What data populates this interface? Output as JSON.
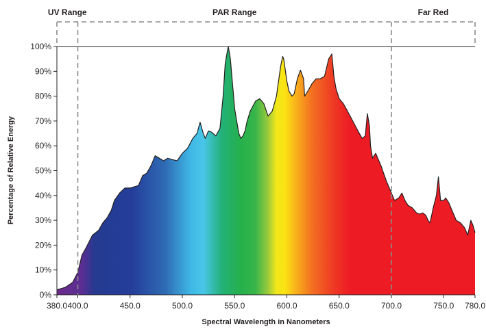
{
  "chart_data": {
    "type": "area",
    "title": "",
    "xlabel": "Spectral Wavelength in Nanometers",
    "ylabel": "Percentage of Relative Energy",
    "xlim": [
      380,
      780
    ],
    "ylim": [
      0,
      100
    ],
    "x_ticks": [
      "380.0",
      "400.0",
      "450.0",
      "500.0",
      "550.0",
      "600.0",
      "650.0",
      "700.0",
      "750.0",
      "780.0"
    ],
    "x_tick_values": [
      380,
      400,
      450,
      500,
      550,
      600,
      650,
      700,
      750,
      780
    ],
    "y_ticks": [
      "0%",
      "10%",
      "20%",
      "30%",
      "40%",
      "50%",
      "60%",
      "70%",
      "80%",
      "90%",
      "100%"
    ],
    "y_tick_values": [
      0,
      10,
      20,
      30,
      40,
      50,
      60,
      70,
      80,
      90,
      100
    ],
    "grid": false,
    "fill": "visible-spectrum gradient (violet to red)",
    "regions": [
      {
        "label": "UV Range",
        "start": 380,
        "end": 400
      },
      {
        "label": "PAR Range",
        "start": 400,
        "end": 700
      },
      {
        "label": "Far Red",
        "start": 700,
        "end": 780
      }
    ],
    "series": [
      {
        "x": [
          380,
          388,
          395,
          400,
          404,
          408,
          414,
          420,
          424,
          428,
          432,
          435,
          440,
          445,
          450,
          454,
          458,
          462,
          466,
          470,
          474,
          478,
          482,
          486,
          490,
          495,
          500,
          505,
          510,
          514,
          517,
          520,
          522,
          525,
          528,
          532,
          536,
          539,
          541,
          543,
          544,
          546,
          548,
          550,
          552,
          554,
          556,
          558,
          560,
          562,
          565,
          570,
          574,
          578,
          582,
          586,
          590,
          594,
          596,
          597,
          600,
          602,
          605,
          607,
          610,
          613,
          616,
          617,
          620,
          624,
          628,
          632,
          636,
          640,
          643,
          645,
          647,
          650,
          654,
          658,
          663,
          668,
          672,
          675,
          677,
          679,
          680,
          682,
          685,
          690,
          695,
          700,
          703,
          707,
          710,
          713,
          716,
          720,
          724,
          727,
          730,
          733,
          735,
          737,
          740,
          743,
          745,
          747,
          750,
          752,
          755,
          758,
          762,
          766,
          770,
          773,
          776,
          778,
          780
        ],
        "y": [
          2,
          3,
          5,
          9,
          16,
          19,
          24,
          26,
          29,
          31,
          34,
          38,
          41,
          43,
          43,
          43.5,
          44,
          48,
          49,
          52,
          56,
          55,
          54,
          55,
          54.5,
          54,
          57,
          59,
          63,
          65,
          69.5,
          65,
          63,
          66,
          65.5,
          64,
          67,
          80,
          93,
          98,
          100,
          95,
          85,
          75,
          70,
          65,
          63,
          64,
          66,
          70,
          74,
          78,
          79,
          77,
          72,
          74,
          80,
          92,
          96,
          95,
          86,
          82,
          80,
          81,
          87,
          90.5,
          87,
          80,
          82,
          85,
          87,
          87,
          88,
          95,
          97,
          88,
          83,
          79,
          77,
          74,
          70,
          66,
          63,
          64,
          73,
          68,
          60,
          55,
          57,
          52,
          46,
          41,
          38,
          39,
          41,
          38,
          36,
          35,
          33,
          32.5,
          33,
          32,
          30,
          29,
          35,
          40,
          47.5,
          38,
          38,
          39,
          37,
          34,
          30,
          29,
          27,
          24,
          30,
          28,
          25
        ]
      }
    ]
  }
}
